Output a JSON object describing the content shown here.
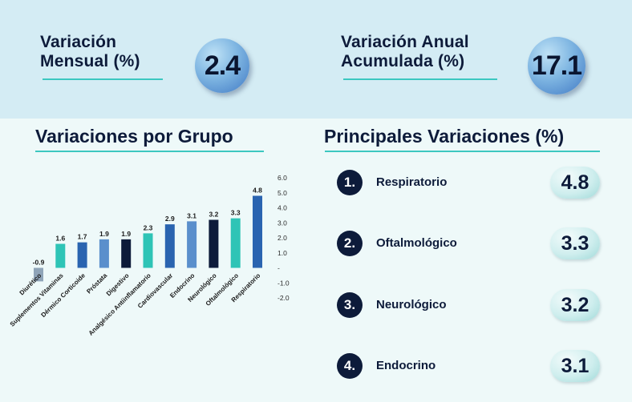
{
  "kpis": {
    "monthly": {
      "title_line1": "Variación",
      "title_line2": "Mensual (%)",
      "value": "2.4"
    },
    "annual": {
      "title_line1": "Variación Anual",
      "title_line2": "Acumulada (%)",
      "value": "17.1"
    }
  },
  "sections": {
    "by_group": "Variaciones por Grupo",
    "top": "Principales Variaciones (%)"
  },
  "top_variations": [
    {
      "rank": "1.",
      "name": "Respiratorio",
      "value": "4.8"
    },
    {
      "rank": "2.",
      "name": "Oftalmológico",
      "value": "3.3"
    },
    {
      "rank": "3.",
      "name": "Neurológico",
      "value": "3.2"
    },
    {
      "rank": "4.",
      "name": "Endocrino",
      "value": "3.1"
    }
  ],
  "chart_data": {
    "type": "bar",
    "title": "Variaciones por Grupo",
    "categories": [
      "Diurético",
      "Suplementos Vitaminas",
      "Dérmico Corticoide",
      "Próstata",
      "Digestivo",
      "Analgésico Antiinflamatorio",
      "Cardiovascular",
      "Endocrino",
      "Neurológico",
      "Oftalmológico",
      "Respiratorio"
    ],
    "values": [
      -0.9,
      1.6,
      1.7,
      1.9,
      1.9,
      2.3,
      2.9,
      3.1,
      3.2,
      3.3,
      4.8
    ],
    "value_labels": [
      "-0.9",
      "1.6",
      "1.7",
      "1.9",
      "1.9",
      "2.3",
      "2.9",
      "3.1",
      "3.2",
      "3.3",
      "4.8"
    ],
    "bar_colors": [
      "#8fa4b8",
      "#2ec4b6",
      "#2a64b0",
      "#5a8fcc",
      "#0d1b3a",
      "#2ec4b6",
      "#2a64b0",
      "#5a8fcc",
      "#0d1b3a",
      "#2ec4b6",
      "#2a64b0"
    ],
    "ylim": [
      -2.0,
      6.0
    ],
    "yticks": [
      "6.0",
      "5.0",
      "4.0",
      "3.0",
      "2.0",
      "1.0",
      "-",
      "-1.0",
      "-2.0"
    ],
    "ytick_values": [
      6,
      5,
      4,
      3,
      2,
      1,
      0,
      -1,
      -2
    ],
    "axis_position": "right",
    "grid": false,
    "xlabel": "",
    "ylabel": ""
  }
}
